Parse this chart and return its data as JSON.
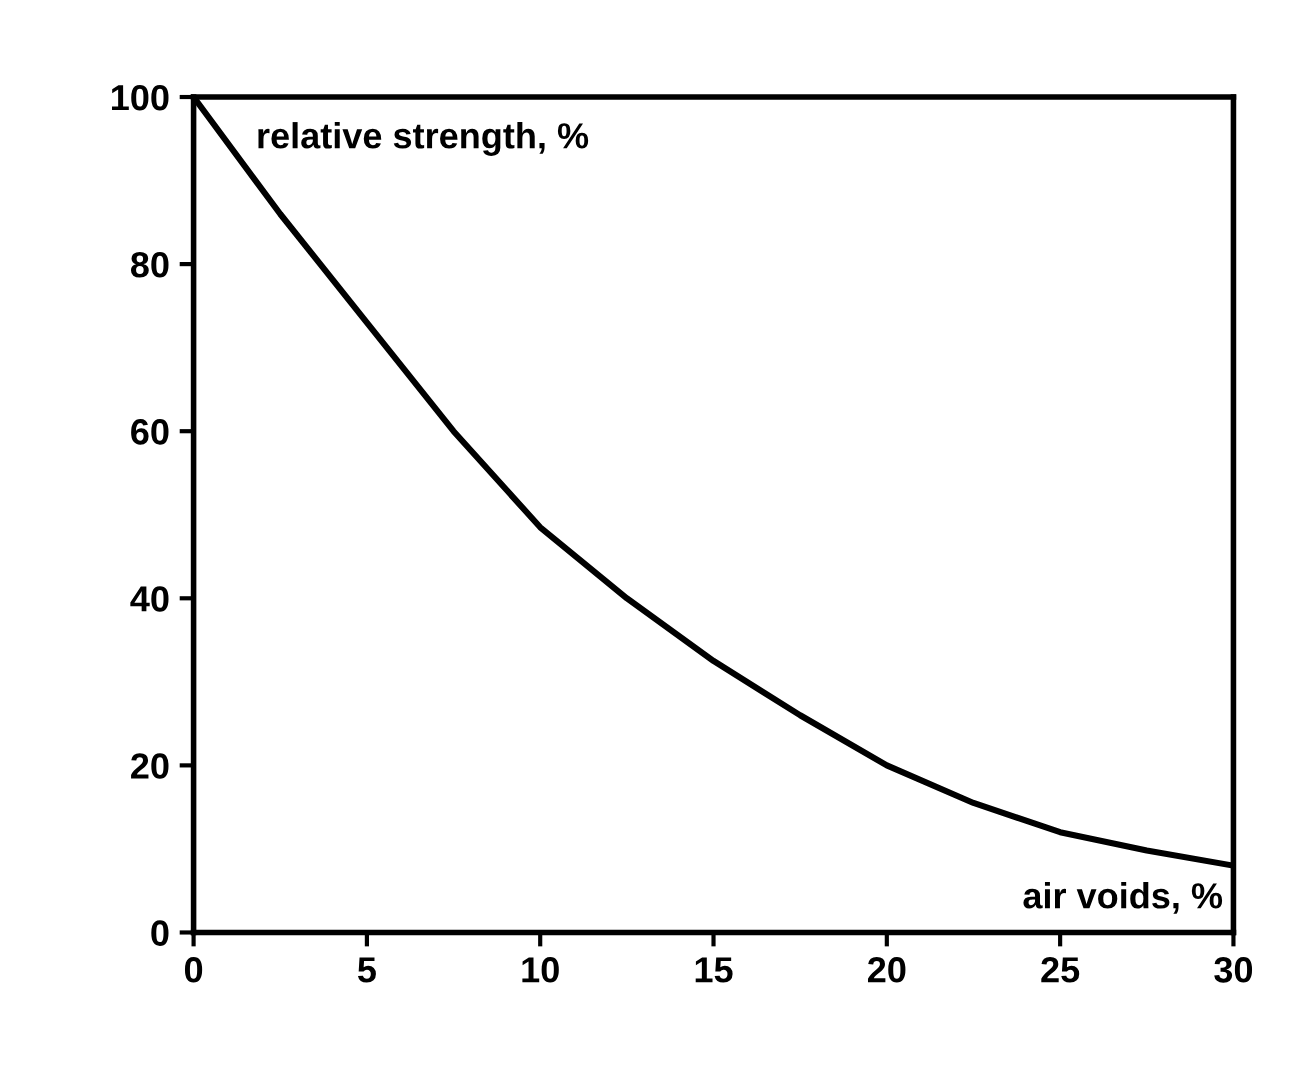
{
  "chart_data": {
    "type": "line",
    "annotations": [
      {
        "text": "relative strength, %"
      },
      {
        "text": "air voids, %"
      }
    ],
    "x": [
      0,
      2.5,
      5,
      7.5,
      10,
      12.5,
      15,
      17.5,
      20,
      22.5,
      25,
      27.5,
      30
    ],
    "series": [
      {
        "color": "#000000",
        "values": [
          100,
          86,
          73,
          60,
          48.5,
          40,
          32.5,
          26,
          20,
          15.5,
          12,
          9.8,
          8
        ]
      }
    ],
    "xlim": [
      0,
      30
    ],
    "ylim": [
      0,
      100
    ],
    "xticks": [
      0,
      5,
      10,
      15,
      20,
      25,
      30
    ],
    "yticks": [
      0,
      20,
      40,
      60,
      80,
      100
    ],
    "grid": false,
    "legend": false,
    "marker": "none",
    "line_style": "solid"
  }
}
